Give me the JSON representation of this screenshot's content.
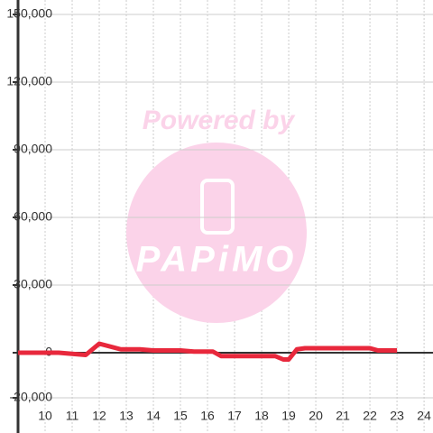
{
  "chart_data": {
    "type": "line",
    "watermark": {
      "top": "Powered by",
      "logo": "PAPiMO"
    },
    "x": [
      9,
      10.5,
      11,
      11.5,
      12,
      12.8,
      13.5,
      14,
      15,
      15.5,
      16.2,
      16.5,
      17,
      18,
      18.5,
      18.8,
      19,
      19.3,
      19.6,
      20,
      21,
      22,
      22.3,
      23
    ],
    "series": [
      {
        "color": "#e8283c",
        "values": [
          0,
          0,
          -500,
          -1000,
          4000,
          1500,
          1500,
          1000,
          1000,
          500,
          500,
          -1500,
          -1500,
          -1500,
          -1500,
          -3000,
          -3000,
          1500,
          2000,
          2000,
          2000,
          2000,
          1000,
          1000
        ]
      }
    ],
    "xlim": [
      9,
      24.33
    ],
    "xticks": [
      10,
      11,
      12,
      13,
      14,
      15,
      16,
      17,
      18,
      19,
      20,
      21,
      22,
      23,
      24
    ],
    "ylim": [
      -35600,
      156400
    ],
    "yticks": [
      {
        "value": -20000,
        "label": "-20,000"
      },
      0,
      {
        "value": 30000,
        "label": "30,000"
      },
      {
        "value": 60000,
        "label": "60,000"
      },
      {
        "value": 90000,
        "label": "90,000"
      },
      {
        "value": 120000,
        "label": "120,000"
      },
      {
        "value": 150000,
        "label": "150,000"
      }
    ],
    "grid": true
  }
}
